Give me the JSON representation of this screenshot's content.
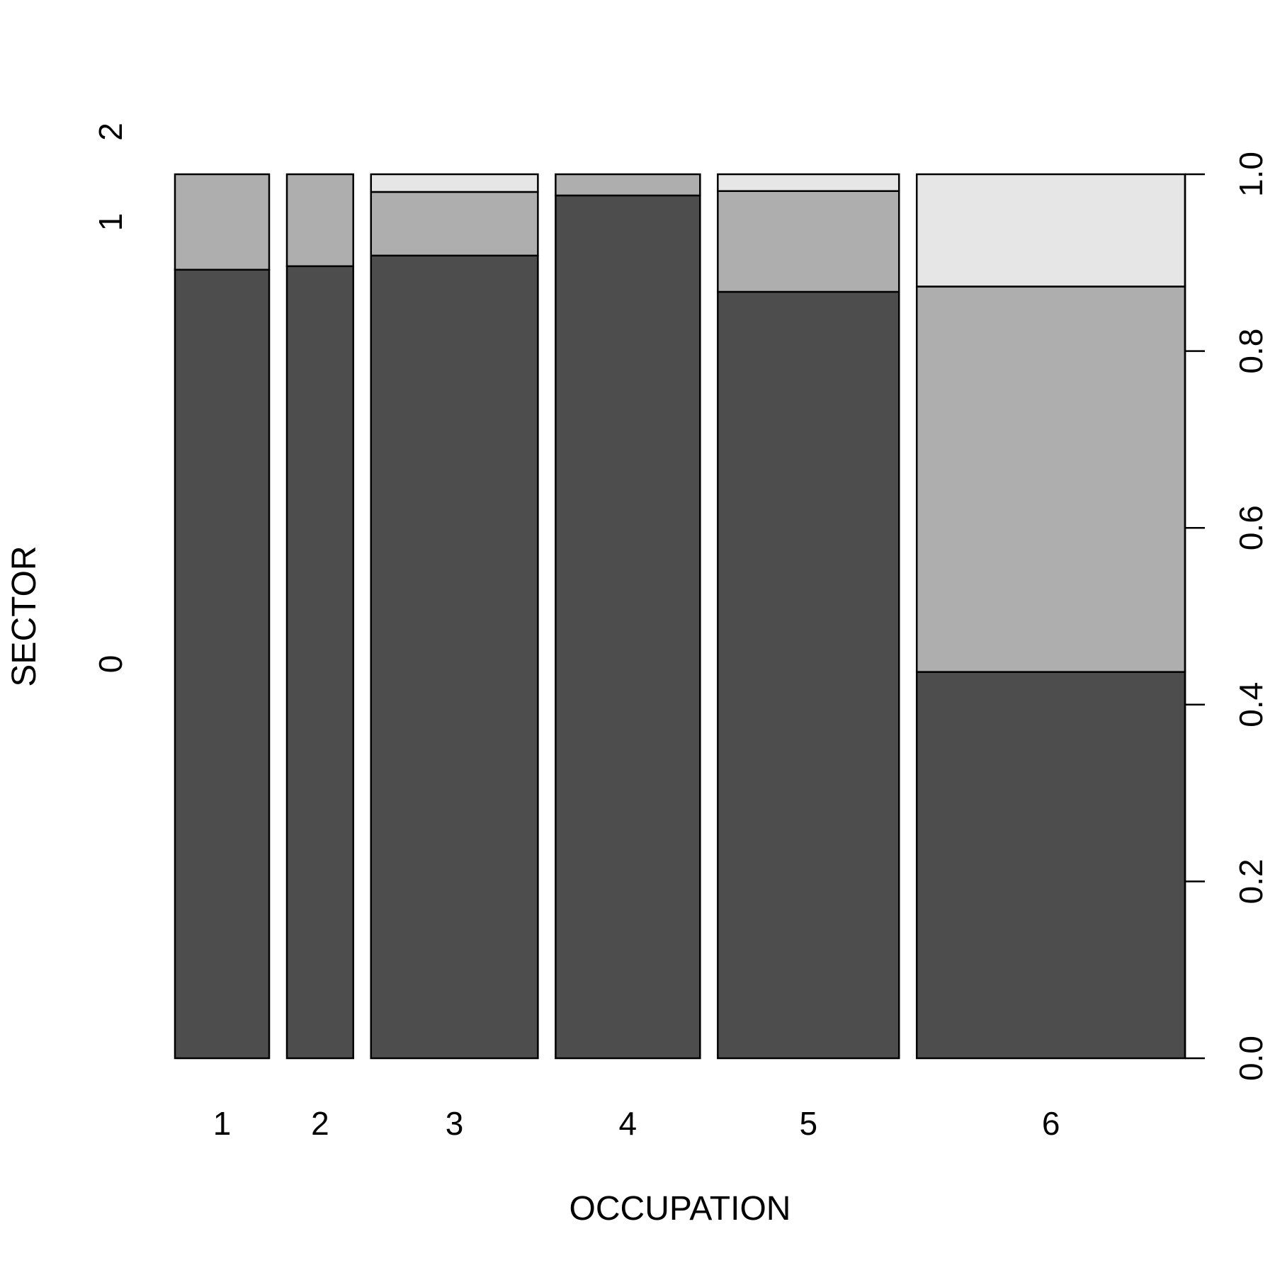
{
  "chart_data": {
    "type": "spineplot",
    "xlabel": "OCCUPATION",
    "ylabel": "SECTOR",
    "categories": [
      "1",
      "2",
      "3",
      "4",
      "5",
      "6"
    ],
    "x_widths": [
      0.105,
      0.074,
      0.186,
      0.161,
      0.202,
      0.299
    ],
    "sector_levels": [
      "0",
      "1",
      "2"
    ],
    "proportions": [
      [
        0.892,
        0.108,
        0.0
      ],
      [
        0.896,
        0.104,
        0.0
      ],
      [
        0.908,
        0.072,
        0.02
      ],
      [
        0.976,
        0.024,
        0.0
      ],
      [
        0.867,
        0.114,
        0.019
      ],
      [
        0.437,
        0.436,
        0.127
      ]
    ],
    "level_colors": [
      "#4d4d4d",
      "#aeaeae",
      "#e6e6e6"
    ],
    "right_ticks": [
      "0.0",
      "0.2",
      "0.4",
      "0.6",
      "0.8",
      "1.0"
    ],
    "ylim": [
      0,
      1
    ]
  }
}
